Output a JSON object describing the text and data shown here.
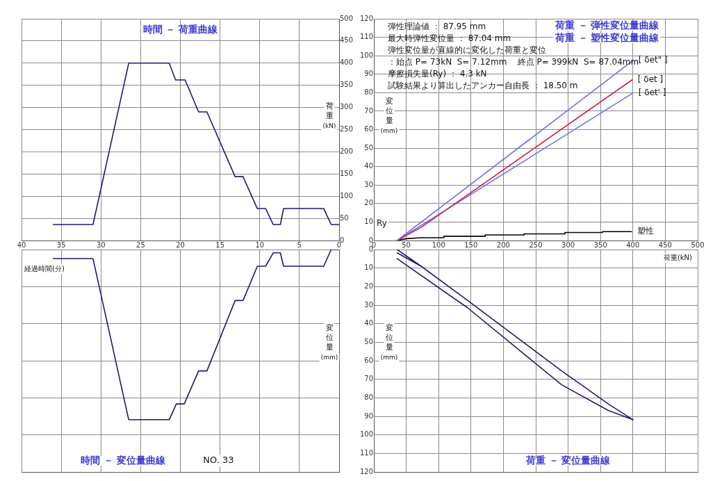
{
  "chart_data": [
    {
      "type": "line",
      "title": "時間 － 荷重曲線",
      "ylabel": "荷重(kN)",
      "x": [
        0,
        1.0,
        1.94,
        7.0,
        7.4,
        8.3,
        9.25,
        10.3,
        12.1,
        13.1,
        16.65,
        17.7,
        19.4,
        20.6,
        21.4,
        26.5,
        31.0,
        36.0
      ],
      "series": [
        {
          "color": "#1a1a6e",
          "values": [
            36,
            36,
            72,
            72,
            36,
            36,
            72,
            72,
            144,
            144,
            290,
            290,
            362,
            362,
            400,
            400,
            36,
            36
          ]
        }
      ],
      "xlim": [
        40,
        0
      ],
      "xticks": [
        40,
        35,
        30,
        25,
        20,
        15,
        10,
        5,
        0
      ],
      "ylim": [
        0,
        500
      ],
      "yticks": [
        0,
        50,
        100,
        150,
        200,
        250,
        300,
        350,
        400,
        450,
        500
      ],
      "grid": true,
      "legend": false,
      "marker": "none",
      "line_style": "solid"
    },
    {
      "type": "line",
      "title": "荷重 － 弾性変位量曲線",
      "subtitle": "荷重 － 塑性変位量曲線",
      "ylabel": "変位量(mm)",
      "annotations": [
        "弾性理論値 ： 87.95 mm",
        "最大時弾性変位量 ： 87.04 mm",
        "弾性変位量が直線的に変化した荷重と変位",
        "：始点 P= 73kN  S= 7.12mm    終点 P= 399kN  S= 87.04mm",
        "摩擦損失量(Ry) ： 4.3 kN",
        "試験結果より算出したアンカー自由長 ： 18.50 m",
        "Ry"
      ],
      "series": [
        {
          "name": "[ δet\" ]",
          "color": "#6f6fe8",
          "x": [
            36,
            400
          ],
          "values": [
            0,
            97.4
          ]
        },
        {
          "name": "[ δet ]",
          "color": "#d0204a",
          "x": [
            36,
            73,
            399
          ],
          "values": [
            0,
            7.1,
            87.0
          ]
        },
        {
          "name": "[ δet' ]",
          "color": "#6f6fe8",
          "x": [
            36,
            400
          ],
          "values": [
            0,
            79.8
          ]
        },
        {
          "name": "塑性",
          "color": "#000000",
          "x": [
            36,
            50,
            73,
            108,
            108,
            172,
            172,
            232,
            232,
            295,
            295,
            353,
            353,
            398
          ],
          "values": [
            0,
            1,
            1.5,
            1.5,
            2.3,
            2.3,
            3,
            3,
            3.6,
            3.6,
            4.3,
            4.3,
            4.8,
            4.8
          ]
        }
      ],
      "xlim": [
        0,
        500
      ],
      "xticks": [
        0,
        50,
        100,
        150,
        200,
        250,
        300,
        350,
        400,
        450,
        500
      ],
      "ylim": [
        0,
        120
      ],
      "yticks": [
        0,
        10,
        20,
        30,
        40,
        50,
        60,
        70,
        80,
        90,
        100,
        110,
        120
      ],
      "grid": true,
      "legend": false,
      "marker": "none",
      "line_style": "solid"
    },
    {
      "type": "line",
      "title": "時間 － 変位量曲線",
      "xlabel": "経過時間(分)",
      "ylabel": "変位量(mm)",
      "annotations": [
        "NO. 33"
      ],
      "x": [
        0,
        1.0,
        1.94,
        7.0,
        7.4,
        8.3,
        9.25,
        10.3,
        12.1,
        13.1,
        16.65,
        17.7,
        19.5,
        20.5,
        21.4,
        26.5,
        31.0,
        36.0
      ],
      "series": [
        {
          "color": "#1a1a6e",
          "values": [
            0,
            0,
            9.0,
            9.0,
            1.8,
            1.8,
            9.0,
            9.0,
            27.5,
            27.5,
            65.5,
            65.5,
            83.3,
            83.3,
            91.8,
            91.8,
            4.9,
            4.9
          ]
        }
      ],
      "xlim": [
        40,
        0
      ],
      "ylim": [
        120,
        0
      ],
      "grid": true,
      "tick_labels": false,
      "legend": false,
      "marker": "none",
      "line_style": "solid"
    },
    {
      "type": "line",
      "title": "荷重 － 変位量曲線",
      "xlabel": "荷重(kN)",
      "ylabel": "変位量(mm)",
      "series": [
        {
          "color": "#1a1a6e",
          "x": [
            36,
            73,
            36,
            73,
            145,
            290,
            362,
            400
          ],
          "values": [
            0,
            9.0,
            1.8,
            9.0,
            27.5,
            65.5,
            83.3,
            91.8
          ]
        },
        {
          "color": "#1a1a6e",
          "x": [
            400,
            362,
            290,
            145,
            36
          ],
          "values": [
            91.8,
            86.8,
            73,
            31.5,
            4.9
          ]
        }
      ],
      "xlim": [
        0,
        500
      ],
      "ylim": [
        120,
        0
      ],
      "yticks": [
        0,
        10,
        20,
        30,
        40,
        50,
        60,
        70,
        80,
        90,
        100,
        110,
        120
      ],
      "grid": true,
      "tick_labels": "y",
      "legend": false,
      "marker": "none",
      "line_style": "solid"
    }
  ]
}
